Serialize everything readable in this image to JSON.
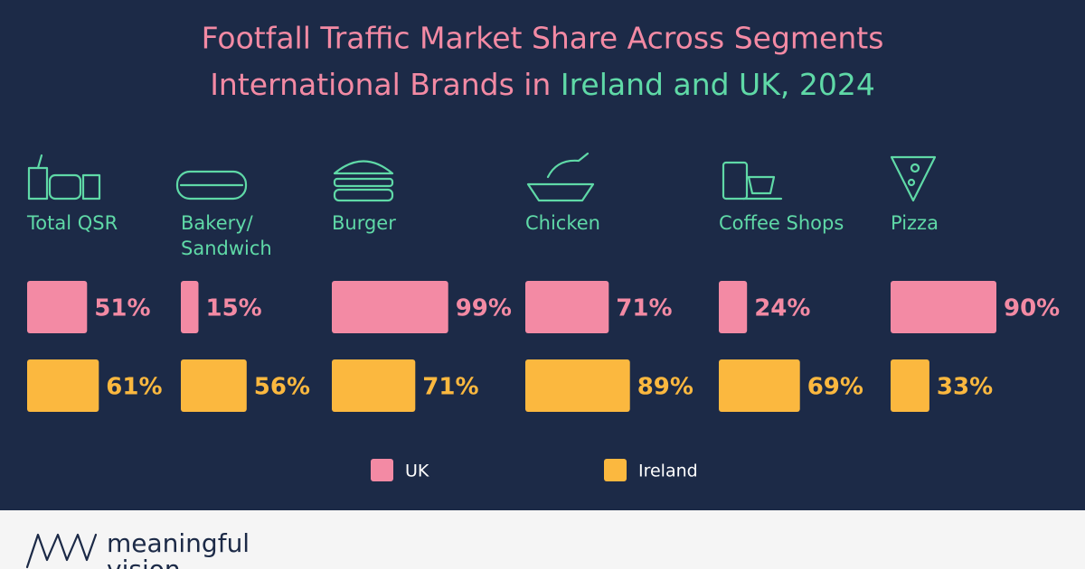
{
  "chart_data": {
    "type": "bar",
    "title": "Footfall Traffic Market Share Across Segments",
    "subtitle": [
      "International Brands in",
      "Ireland and UK, 2024"
    ],
    "categories": [
      "Total QSR",
      "Bakery/\nSandwich",
      "Burger",
      "Chicken",
      "Coffee Shops",
      "Pizza"
    ],
    "series": [
      {
        "name": "UK",
        "color": "#f38aa4",
        "values": [
          51,
          15,
          99,
          71,
          24,
          90
        ],
        "value_labels": [
          "51%",
          "15%",
          "99%",
          "71%",
          "24%",
          "90%"
        ]
      },
      {
        "name": "Ireland",
        "color": "#fbb83f",
        "values": [
          61,
          56,
          71,
          89,
          69,
          33
        ],
        "value_labels": [
          "61%",
          "56%",
          "71%",
          "89%",
          "69%",
          "33%"
        ]
      }
    ]
  },
  "footer": {
    "brand": [
      "meaningful",
      "vision"
    ]
  }
}
